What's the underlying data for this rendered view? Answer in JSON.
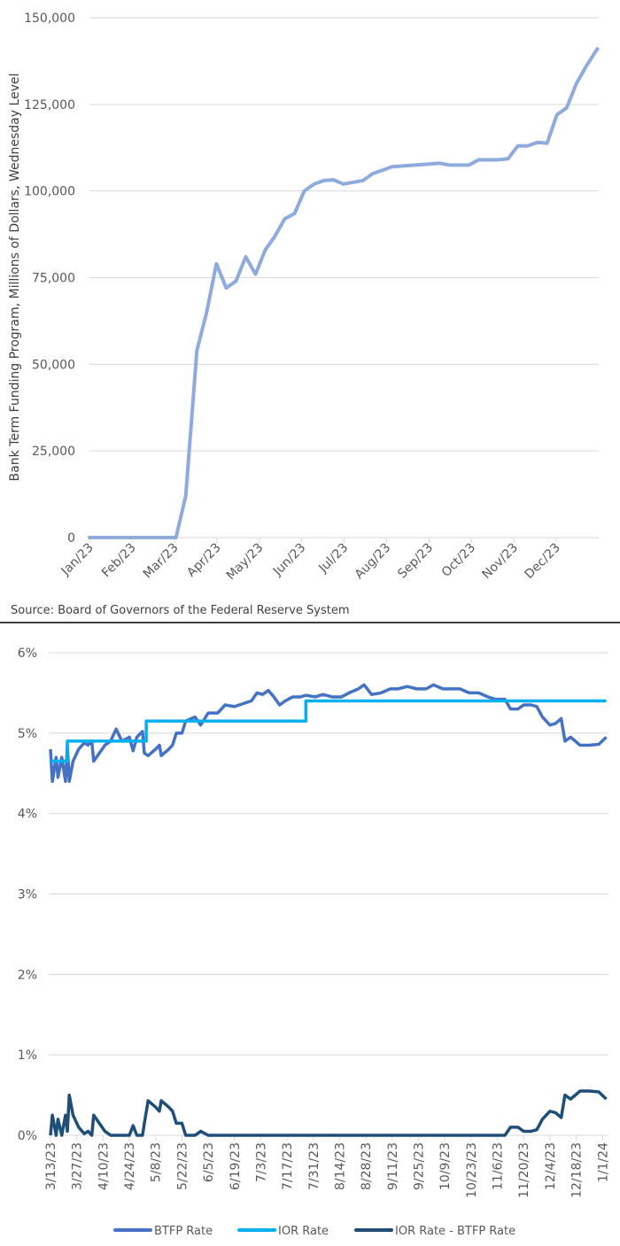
{
  "chart_data": [
    {
      "type": "line",
      "title": "",
      "ylabel": "Bank Term Funding Program, Millions of Dollars, Wednesday Level",
      "xlabel": "",
      "x_unit": "day of year 2023",
      "ylim": [
        0,
        150000
      ],
      "yticks": [
        0,
        25000,
        50000,
        75000,
        100000,
        125000,
        150000
      ],
      "ytick_labels": [
        "0",
        "25,000",
        "50,000",
        "75,000",
        "100,000",
        "125,000",
        "150,000"
      ],
      "xtick_labels": [
        "Jan/23",
        "Feb/23",
        "Mar/23",
        "Apr/23",
        "May/23",
        "Jun/23",
        "Jul/23",
        "Aug/23",
        "Sep/23",
        "Oct/23",
        "Nov/23",
        "Dec/23"
      ],
      "grid": true,
      "source": "Source: Board of Governors of the Federal Reserve System",
      "series": [
        {
          "name": "Bank Term Funding Program",
          "color": "#8faadc",
          "points": [
            [
              0,
              0
            ],
            [
              62,
              0
            ],
            [
              69,
              12000
            ],
            [
              77,
              54000
            ],
            [
              84,
              65000
            ],
            [
              91,
              79000
            ],
            [
              98,
              72000
            ],
            [
              105,
              74000
            ],
            [
              112,
              81000
            ],
            [
              119,
              76000
            ],
            [
              126,
              83000
            ],
            [
              133,
              87000
            ],
            [
              140,
              92000
            ],
            [
              147,
              93500
            ],
            [
              154,
              100000
            ],
            [
              161,
              102000
            ],
            [
              168,
              103000
            ],
            [
              175,
              103200
            ],
            [
              182,
              102000
            ],
            [
              196,
              103000
            ],
            [
              203,
              105000
            ],
            [
              210,
              106000
            ],
            [
              217,
              107000
            ],
            [
              251,
              108000
            ],
            [
              258,
              107500
            ],
            [
              272,
              107500
            ],
            [
              279,
              109000
            ],
            [
              293,
              109000
            ],
            [
              300,
              109300
            ],
            [
              307,
              113000
            ],
            [
              314,
              113000
            ],
            [
              321,
              114000
            ],
            [
              328,
              113800
            ],
            [
              335,
              122000
            ],
            [
              342,
              124000
            ],
            [
              349,
              131000
            ],
            [
              356,
              136000
            ],
            [
              364,
              141000
            ]
          ]
        }
      ]
    },
    {
      "type": "line",
      "title": "",
      "x_unit": "days since 3/13/23",
      "ylim": [
        0,
        6
      ],
      "yticks": [
        0,
        1,
        2,
        3,
        4,
        5,
        6
      ],
      "ytick_labels": [
        "0%",
        "1%",
        "2%",
        "3%",
        "4%",
        "5%",
        "6%"
      ],
      "xtick_labels": [
        "3/13/23",
        "3/27/23",
        "4/10/23",
        "4/24/23",
        "5/8/23",
        "5/22/23",
        "6/5/23",
        "6/19/23",
        "7/3/23",
        "7/17/23",
        "7/31/23",
        "8/14/23",
        "8/28/23",
        "9/11/23",
        "9/25/23",
        "10/9/23",
        "10/23/23",
        "11/6/23",
        "11/20/23",
        "12/4/23",
        "12/18/23",
        "1/1/24"
      ],
      "grid": true,
      "legend_position": "bottom",
      "series": [
        {
          "name": "BTFP Rate",
          "color": "#4472c4",
          "points": [
            [
              0,
              4.8
            ],
            [
              1,
              4.4
            ],
            [
              3,
              4.7
            ],
            [
              4,
              4.45
            ],
            [
              6,
              4.7
            ],
            [
              8,
              4.4
            ],
            [
              9,
              4.85
            ],
            [
              10,
              4.4
            ],
            [
              12,
              4.65
            ],
            [
              15,
              4.8
            ],
            [
              18,
              4.88
            ],
            [
              20,
              4.85
            ],
            [
              22,
              4.9
            ],
            [
              23,
              4.65
            ],
            [
              26,
              4.75
            ],
            [
              29,
              4.85
            ],
            [
              32,
              4.9
            ],
            [
              35,
              5.05
            ],
            [
              38,
              4.9
            ],
            [
              42,
              4.95
            ],
            [
              44,
              4.78
            ],
            [
              46,
              4.95
            ],
            [
              49,
              5.02
            ],
            [
              50,
              4.75
            ],
            [
              52,
              4.72
            ],
            [
              56,
              4.8
            ],
            [
              58,
              4.85
            ],
            [
              59,
              4.72
            ],
            [
              63,
              4.8
            ],
            [
              65,
              4.85
            ],
            [
              67,
              5.0
            ],
            [
              70,
              5.0
            ],
            [
              72,
              5.15
            ],
            [
              77,
              5.2
            ],
            [
              80,
              5.1
            ],
            [
              84,
              5.25
            ],
            [
              89,
              5.25
            ],
            [
              93,
              5.35
            ],
            [
              98,
              5.33
            ],
            [
              103,
              5.37
            ],
            [
              107,
              5.4
            ],
            [
              110,
              5.5
            ],
            [
              113,
              5.48
            ],
            [
              116,
              5.53
            ],
            [
              119,
              5.45
            ],
            [
              122,
              5.35
            ],
            [
              125,
              5.4
            ],
            [
              129,
              5.45
            ],
            [
              133,
              5.45
            ],
            [
              136,
              5.47
            ],
            [
              141,
              5.45
            ],
            [
              145,
              5.48
            ],
            [
              150,
              5.45
            ],
            [
              155,
              5.45
            ],
            [
              159,
              5.5
            ],
            [
              164,
              5.55
            ],
            [
              167,
              5.6
            ],
            [
              171,
              5.48
            ],
            [
              176,
              5.5
            ],
            [
              181,
              5.55
            ],
            [
              185,
              5.55
            ],
            [
              190,
              5.58
            ],
            [
              195,
              5.55
            ],
            [
              200,
              5.55
            ],
            [
              204,
              5.6
            ],
            [
              209,
              5.55
            ],
            [
              214,
              5.55
            ],
            [
              218,
              5.55
            ],
            [
              223,
              5.5
            ],
            [
              228,
              5.5
            ],
            [
              233,
              5.45
            ],
            [
              237,
              5.42
            ],
            [
              242,
              5.42
            ],
            [
              245,
              5.3
            ],
            [
              249,
              5.3
            ],
            [
              252,
              5.35
            ],
            [
              256,
              5.35
            ],
            [
              259,
              5.33
            ],
            [
              262,
              5.2
            ],
            [
              266,
              5.1
            ],
            [
              269,
              5.12
            ],
            [
              272,
              5.18
            ],
            [
              274,
              4.9
            ],
            [
              277,
              4.95
            ],
            [
              282,
              4.85
            ],
            [
              287,
              4.85
            ],
            [
              292,
              4.86
            ],
            [
              296,
              4.95
            ]
          ]
        },
        {
          "name": "IOR Rate",
          "color": "#00b0f0",
          "points": [
            [
              0,
              4.65
            ],
            [
              9,
              4.65
            ],
            [
              9,
              4.9
            ],
            [
              51,
              4.9
            ],
            [
              51,
              5.15
            ],
            [
              136,
              5.15
            ],
            [
              136,
              5.4
            ],
            [
              296,
              5.4
            ]
          ]
        },
        {
          "name": "IOR Rate - BTFP Rate",
          "color": "#1f4e79",
          "derived": "IOR Rate minus BTFP Rate, floored at 0"
        }
      ]
    }
  ]
}
